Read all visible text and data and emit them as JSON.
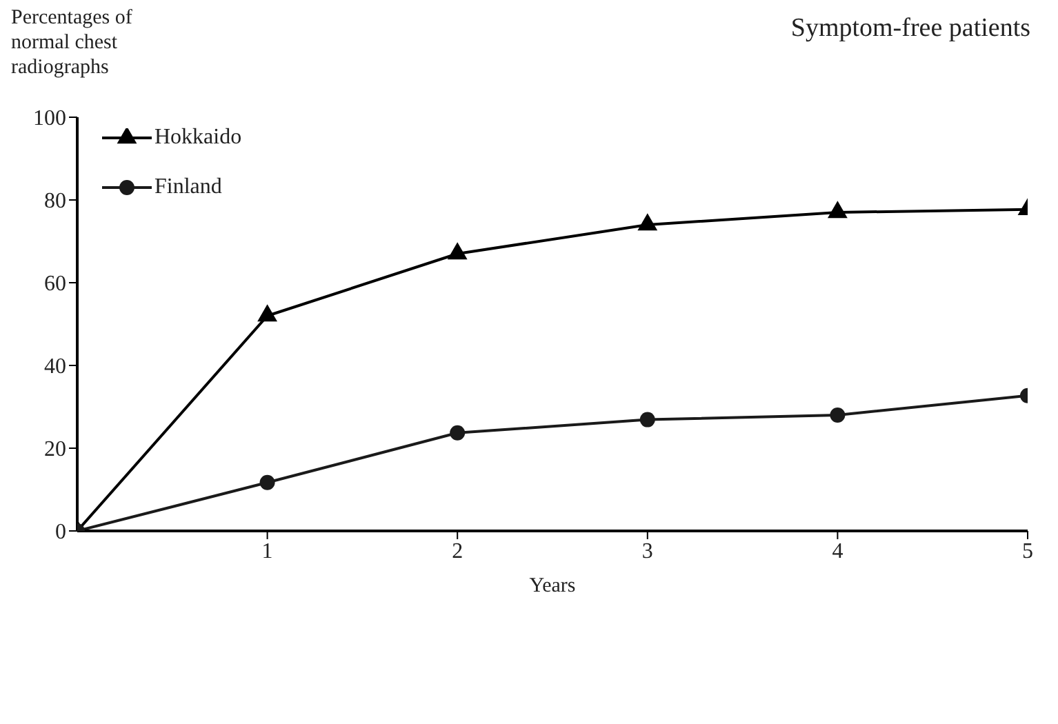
{
  "chart_data": {
    "type": "line",
    "title": "Symptom-free patients",
    "xlabel": "Years",
    "ylabel": "Percentages of normal chest radiographs",
    "x": [
      0,
      1,
      2,
      3,
      4,
      5
    ],
    "series": [
      {
        "name": "Hokkaido",
        "color": "#000000",
        "marker": "triangle",
        "values": [
          0,
          52,
          67,
          74,
          77,
          77.7
        ]
      },
      {
        "name": "Finland",
        "color": "#1a1a1a",
        "marker": "circle",
        "values": [
          0,
          11.7,
          23.7,
          26.9,
          28,
          32.7
        ]
      }
    ],
    "xlim": [
      0,
      5
    ],
    "xticks": [
      1,
      2,
      3,
      4,
      5
    ],
    "ylim": [
      0,
      100
    ],
    "yticks": [
      0,
      20,
      40,
      60,
      80,
      100
    ],
    "grid": false,
    "legend": "top left",
    "line_style": "solid"
  }
}
